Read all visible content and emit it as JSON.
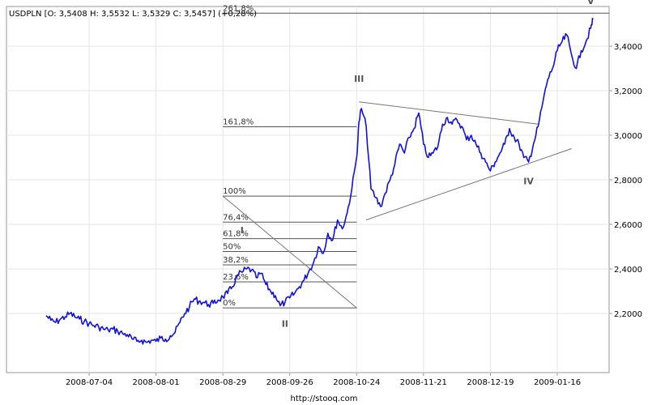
{
  "chart_data": {
    "type": "line",
    "title": "USDPLN [O: 3,5408  H: 3,5532  L: 3,5329  C: 3,5457]  (+0,28%)",
    "footer": "http://stooq.com",
    "ylim": [
      2.0,
      3.58
    ],
    "y_ticks": [
      2.2,
      2.4,
      2.6,
      2.8,
      3.0,
      3.2,
      3.4
    ],
    "y_tick_labels": [
      "2,2000",
      "2,4000",
      "2,6000",
      "2,8000",
      "3,0000",
      "3,2000",
      "3,4000"
    ],
    "x_tick_labels": [
      "2008-07-04",
      "2008-08-01",
      "2008-08-29",
      "2008-09-26",
      "2008-10-24",
      "2008-11-21",
      "2008-12-19",
      "2009-01-16"
    ],
    "grid": true,
    "series": [
      {
        "color": "#1010e0",
        "points": [
          [
            "2008-06-16",
            2.19
          ],
          [
            "2008-06-18",
            2.17
          ],
          [
            "2008-06-20",
            2.16
          ],
          [
            "2008-06-22",
            2.175
          ],
          [
            "2008-06-24",
            2.185
          ],
          [
            "2008-06-26",
            2.2
          ],
          [
            "2008-06-28",
            2.185
          ],
          [
            "2008-06-30",
            2.175
          ],
          [
            "2008-07-02",
            2.165
          ],
          [
            "2008-07-04",
            2.155
          ],
          [
            "2008-07-06",
            2.145
          ],
          [
            "2008-07-08",
            2.14
          ],
          [
            "2008-07-10",
            2.13
          ],
          [
            "2008-07-12",
            2.125
          ],
          [
            "2008-07-14",
            2.13
          ],
          [
            "2008-07-16",
            2.12
          ],
          [
            "2008-07-18",
            2.11
          ],
          [
            "2008-07-20",
            2.105
          ],
          [
            "2008-07-22",
            2.085
          ],
          [
            "2008-07-24",
            2.075
          ],
          [
            "2008-07-26",
            2.08
          ],
          [
            "2008-07-28",
            2.07
          ],
          [
            "2008-07-30",
            2.08
          ],
          [
            "2008-08-01",
            2.075
          ],
          [
            "2008-08-03",
            2.09
          ],
          [
            "2008-08-05",
            2.085
          ],
          [
            "2008-08-07",
            2.1
          ],
          [
            "2008-08-09",
            2.115
          ],
          [
            "2008-08-11",
            2.16
          ],
          [
            "2008-08-13",
            2.2
          ],
          [
            "2008-08-15",
            2.23
          ],
          [
            "2008-08-17",
            2.265
          ],
          [
            "2008-08-19",
            2.255
          ],
          [
            "2008-08-21",
            2.25
          ],
          [
            "2008-08-23",
            2.24
          ],
          [
            "2008-08-25",
            2.245
          ],
          [
            "2008-08-27",
            2.26
          ],
          [
            "2008-08-29",
            2.275
          ],
          [
            "2008-08-31",
            2.29
          ],
          [
            "2008-09-02",
            2.32
          ],
          [
            "2008-09-04",
            2.37
          ],
          [
            "2008-09-06",
            2.385
          ],
          [
            "2008-09-08",
            2.4
          ],
          [
            "2008-09-10",
            2.395
          ],
          [
            "2008-09-12",
            2.36
          ],
          [
            "2008-09-14",
            2.38
          ],
          [
            "2008-09-16",
            2.33
          ],
          [
            "2008-09-18",
            2.3
          ],
          [
            "2008-09-20",
            2.28
          ],
          [
            "2008-09-22",
            2.235
          ],
          [
            "2008-09-24",
            2.25
          ],
          [
            "2008-09-26",
            2.27
          ],
          [
            "2008-09-28",
            2.29
          ],
          [
            "2008-09-30",
            2.32
          ],
          [
            "2008-10-02",
            2.35
          ],
          [
            "2008-10-04",
            2.39
          ],
          [
            "2008-10-06",
            2.43
          ],
          [
            "2008-10-08",
            2.5
          ],
          [
            "2008-10-10",
            2.47
          ],
          [
            "2008-10-12",
            2.56
          ],
          [
            "2008-10-14",
            2.53
          ],
          [
            "2008-10-16",
            2.62
          ],
          [
            "2008-10-18",
            2.58
          ],
          [
            "2008-10-20",
            2.65
          ],
          [
            "2008-10-22",
            2.76
          ],
          [
            "2008-10-24",
            2.9
          ],
          [
            "2008-10-25",
            3.06
          ],
          [
            "2008-10-26",
            3.12
          ],
          [
            "2008-10-28",
            3.04
          ],
          [
            "2008-10-30",
            2.76
          ],
          [
            "2008-11-01",
            2.72
          ],
          [
            "2008-11-03",
            2.68
          ],
          [
            "2008-11-05",
            2.74
          ],
          [
            "2008-11-07",
            2.8
          ],
          [
            "2008-11-09",
            2.87
          ],
          [
            "2008-11-11",
            2.96
          ],
          [
            "2008-11-13",
            2.92
          ],
          [
            "2008-11-15",
            2.99
          ],
          [
            "2008-11-17",
            3.03
          ],
          [
            "2008-11-19",
            3.1
          ],
          [
            "2008-11-21",
            2.96
          ],
          [
            "2008-11-23",
            2.9
          ],
          [
            "2008-11-25",
            2.92
          ],
          [
            "2008-11-27",
            2.95
          ],
          [
            "2008-11-29",
            3.05
          ],
          [
            "2008-12-01",
            3.08
          ],
          [
            "2008-12-03",
            3.05
          ],
          [
            "2008-12-05",
            3.07
          ],
          [
            "2008-12-07",
            3.04
          ],
          [
            "2008-12-09",
            2.98
          ],
          [
            "2008-12-11",
            3.0
          ],
          [
            "2008-12-13",
            2.96
          ],
          [
            "2008-12-15",
            2.92
          ],
          [
            "2008-12-17",
            2.88
          ],
          [
            "2008-12-19",
            2.84
          ],
          [
            "2008-12-21",
            2.88
          ],
          [
            "2008-12-23",
            2.92
          ],
          [
            "2008-12-25",
            2.96
          ],
          [
            "2008-12-27",
            3.03
          ],
          [
            "2008-12-29",
            2.99
          ],
          [
            "2008-12-31",
            2.96
          ],
          [
            "2009-01-02",
            2.9
          ],
          [
            "2009-01-04",
            2.88
          ],
          [
            "2009-01-06",
            2.96
          ],
          [
            "2009-01-08",
            3.04
          ],
          [
            "2009-01-10",
            3.15
          ],
          [
            "2009-01-12",
            3.25
          ],
          [
            "2009-01-14",
            3.3
          ],
          [
            "2009-01-16",
            3.38
          ],
          [
            "2009-01-18",
            3.42
          ],
          [
            "2009-01-20",
            3.45
          ],
          [
            "2009-01-22",
            3.36
          ],
          [
            "2009-01-24",
            3.3
          ],
          [
            "2009-01-26",
            3.38
          ],
          [
            "2009-01-28",
            3.42
          ],
          [
            "2009-01-30",
            3.48
          ],
          [
            "2009-01-31",
            3.52
          ]
        ]
      }
    ],
    "fibonacci_levels": [
      {
        "label": "0%",
        "value": 2.225
      },
      {
        "label": "23,6%",
        "value": 2.342
      },
      {
        "label": "38,2%",
        "value": 2.418
      },
      {
        "label": "50%",
        "value": 2.478
      },
      {
        "label": "61,8%",
        "value": 2.536
      },
      {
        "label": "76,4%",
        "value": 2.61
      },
      {
        "label": "100%",
        "value": 2.727
      },
      {
        "label": "161,8%",
        "value": 3.038
      },
      {
        "label": "261,8%",
        "value": 3.548
      }
    ],
    "wave_labels": [
      {
        "text": "I",
        "date": "2008-09-06",
        "value": 2.56
      },
      {
        "text": "II",
        "date": "2008-09-24",
        "value": 2.14
      },
      {
        "text": "III",
        "date": "2008-10-25",
        "value": 3.24
      },
      {
        "text": "IV",
        "date": "2009-01-04",
        "value": 2.78
      },
      {
        "text": "V",
        "date": "2009-01-30",
        "value": 3.59
      }
    ],
    "trend_lines": [
      {
        "from": [
          "2008-10-25",
          3.15
        ],
        "to": [
          "2009-01-08",
          3.05
        ]
      },
      {
        "from": [
          "2008-10-28",
          2.62
        ],
        "to": [
          "2009-01-22",
          2.94
        ]
      },
      {
        "from": [
          "2008-08-29",
          2.727
        ],
        "to": [
          "2008-10-24",
          2.225
        ]
      }
    ]
  }
}
